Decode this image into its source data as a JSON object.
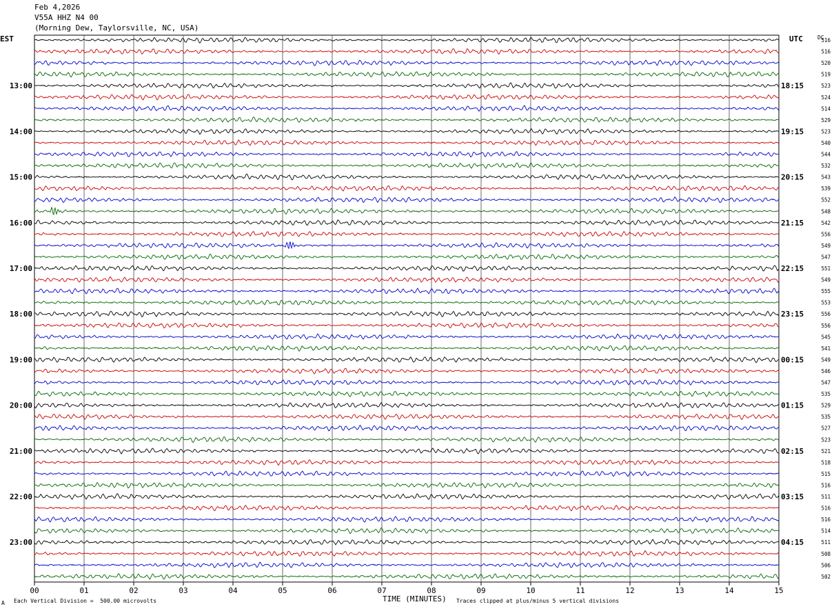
{
  "header": {
    "date": "Feb 4,2026",
    "station": "V55A HHZ N4 00",
    "location": "(Morning Dew, Taylorsville, NC, USA)"
  },
  "left_timezone": "EST",
  "right_timezone": "UTC",
  "dc_label": "DC",
  "footer": {
    "xlabel": "TIME (MINUTES)",
    "scale_note": "Each Vertical Division =  500.00 microvolts",
    "clip_note": "Traces clipped at plus/minus 5 vertical divisions",
    "corner_mark": "A"
  },
  "colors": {
    "trace_cycle": [
      "#000000",
      "#cc0000",
      "#0000cc",
      "#006600"
    ],
    "grid": "#000000"
  },
  "chart_data": {
    "type": "line",
    "title": "V55A HHZ N4 00",
    "xlabel": "TIME (MINUTES)",
    "x_ticks": [
      "00",
      "01",
      "02",
      "03",
      "04",
      "05",
      "06",
      "07",
      "08",
      "09",
      "10",
      "11",
      "12",
      "13",
      "14",
      "15"
    ],
    "xlim": [
      0,
      15
    ],
    "est_hour_labels": [
      "13:00",
      "14:00",
      "15:00",
      "16:00",
      "17:00",
      "18:00",
      "19:00",
      "20:00",
      "21:00",
      "22:00",
      "23:00"
    ],
    "utc_hour_labels": [
      "18:15",
      "19:15",
      "20:15",
      "21:15",
      "22:15",
      "23:15",
      "00:15",
      "01:15",
      "02:15",
      "03:15",
      "04:15"
    ],
    "trace_count": 48,
    "dc_offsets": [
      516,
      516,
      520,
      519,
      523,
      524,
      514,
      529,
      523,
      540,
      544,
      532,
      543,
      539,
      552,
      548,
      542,
      556,
      549,
      547,
      551,
      549,
      555,
      553,
      556,
      556,
      545,
      541,
      549,
      546,
      547,
      535,
      529,
      535,
      527,
      523,
      521,
      518,
      515,
      516,
      511,
      516,
      516,
      514,
      511,
      508,
      506,
      502
    ],
    "events": [
      {
        "trace_index": 18,
        "minute": 5.15,
        "description": "small event"
      },
      {
        "trace_index": 15,
        "minute": 0.4,
        "description": "burst"
      }
    ],
    "grid": true
  }
}
